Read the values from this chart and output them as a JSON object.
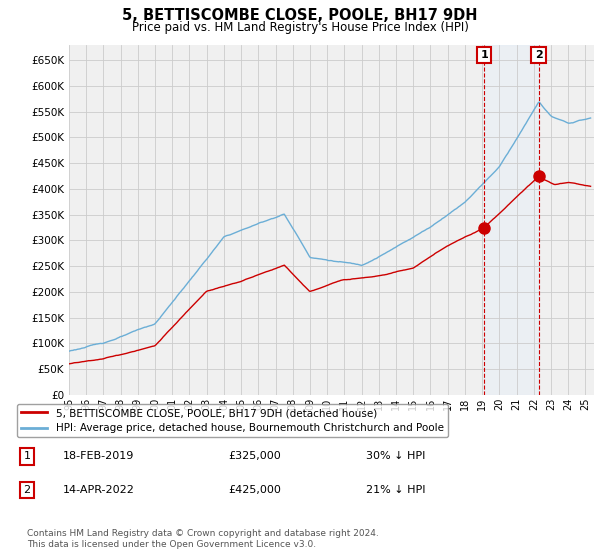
{
  "title": "5, BETTISCOMBE CLOSE, POOLE, BH17 9DH",
  "subtitle": "Price paid vs. HM Land Registry's House Price Index (HPI)",
  "legend_line1": "5, BETTISCOMBE CLOSE, POOLE, BH17 9DH (detached house)",
  "legend_line2": "HPI: Average price, detached house, Bournemouth Christchurch and Poole",
  "annotation1_date": "18-FEB-2019",
  "annotation1_price": "£325,000",
  "annotation1_hpi": "30% ↓ HPI",
  "annotation2_date": "14-APR-2022",
  "annotation2_price": "£425,000",
  "annotation2_hpi": "21% ↓ HPI",
  "footer": "Contains HM Land Registry data © Crown copyright and database right 2024.\nThis data is licensed under the Open Government Licence v3.0.",
  "hpi_color": "#6baed6",
  "sale_color": "#cc0000",
  "annotation_box_color": "#cc0000",
  "background_plot": "#f0f0f0",
  "background_fig": "#ffffff",
  "grid_color": "#cccccc",
  "shade_color": "#ddeeff",
  "ylim": [
    0,
    680000
  ],
  "yticks": [
    0,
    50000,
    100000,
    150000,
    200000,
    250000,
    300000,
    350000,
    400000,
    450000,
    500000,
    550000,
    600000,
    650000
  ],
  "sale1_x": 2019.12,
  "sale1_y": 325000,
  "sale2_x": 2022.28,
  "sale2_y": 425000,
  "xmin": 1995,
  "xmax": 2025.5
}
